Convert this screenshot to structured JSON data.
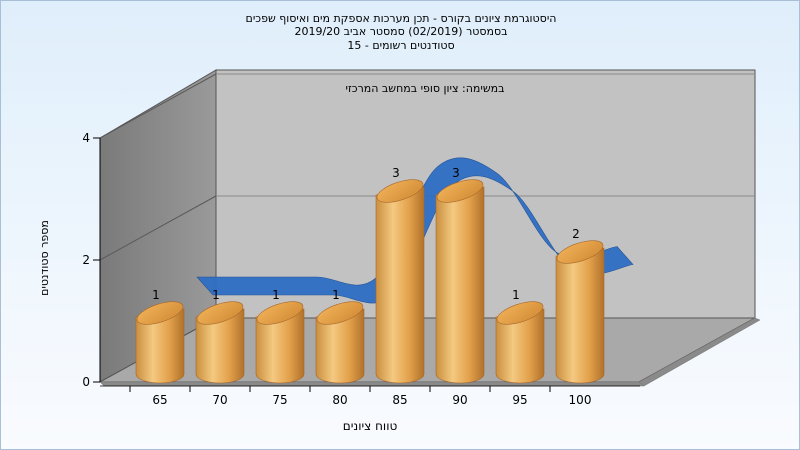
{
  "chart_data": {
    "type": "bar",
    "title": [
      "היסטוגרמת ציונים בקורס - תכן מערכות אספקת מים ואיסוף שפכים",
      "בסמסטר  (02/2019)  סמסטר אביב 2019/20",
      "סטודנטים רשומים - 15"
    ],
    "annotation": "במשימה: ציון סופי במחשב המרכזי",
    "xlabel": "טווח ציונים",
    "ylabel": "מספר סטודנטים",
    "x_ticks": [
      "65",
      "70",
      "75",
      "80",
      "85",
      "90",
      "95",
      "100"
    ],
    "y_ticks": [
      "0",
      "2",
      "4"
    ],
    "ylim": [
      0,
      4
    ],
    "series": [
      {
        "kind": "bar",
        "values": [
          1,
          1,
          1,
          1,
          3,
          3,
          1,
          2
        ],
        "labels": [
          "1",
          "1",
          "1",
          "1",
          "3",
          "3",
          "1",
          "2"
        ],
        "color": "#e3a04a"
      },
      {
        "kind": "ribbon",
        "values": [
          1.0,
          1.0,
          1.0,
          1.0,
          2.8,
          2.7,
          1.4,
          1.5
        ],
        "color": "#2f6ec4"
      }
    ],
    "grid": true
  }
}
